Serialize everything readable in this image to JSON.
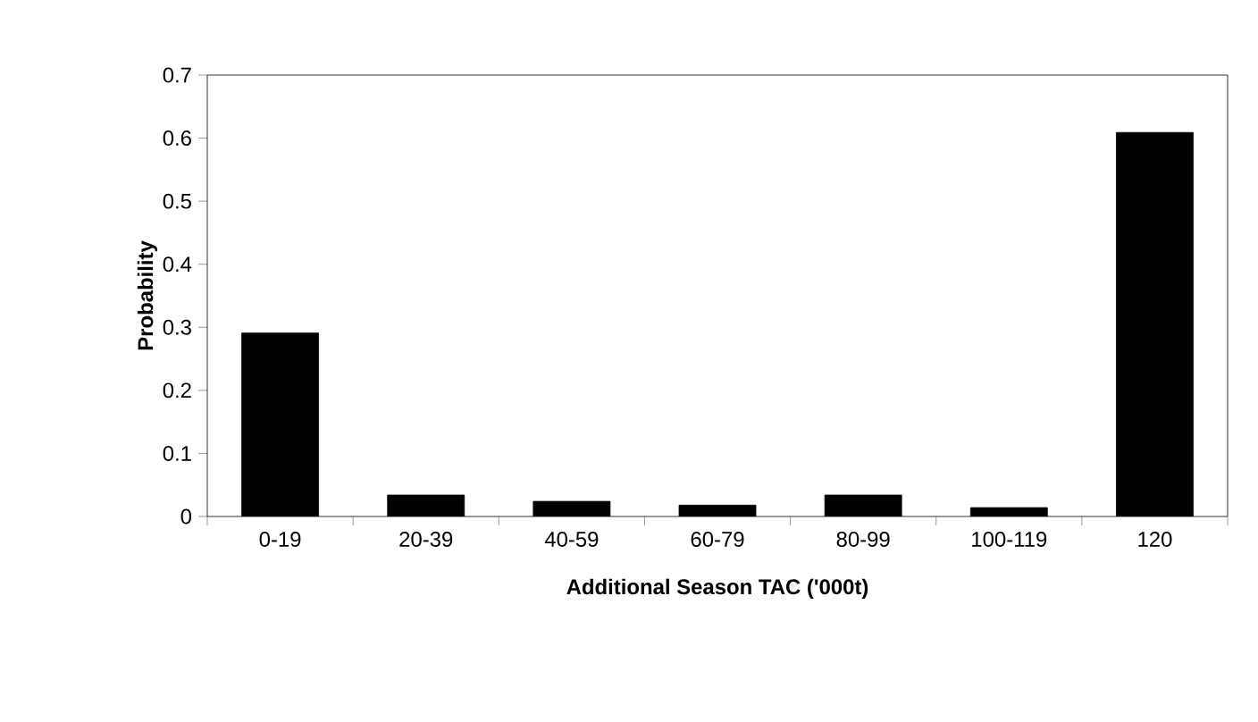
{
  "chart_data": {
    "type": "bar",
    "xlabel": "Additional Season TAC ('000t)",
    "ylabel": "Probability",
    "categories": [
      "0-19",
      "20-39",
      "40-59",
      "60-79",
      "80-99",
      "100-119",
      "120"
    ],
    "values": [
      0.291,
      0.034,
      0.024,
      0.018,
      0.034,
      0.014,
      0.609
    ],
    "color": "#000000",
    "ylim": [
      0,
      0.7
    ],
    "yticks": [
      0,
      0.1,
      0.2,
      0.3,
      0.4,
      0.5,
      0.6,
      0.7
    ]
  }
}
